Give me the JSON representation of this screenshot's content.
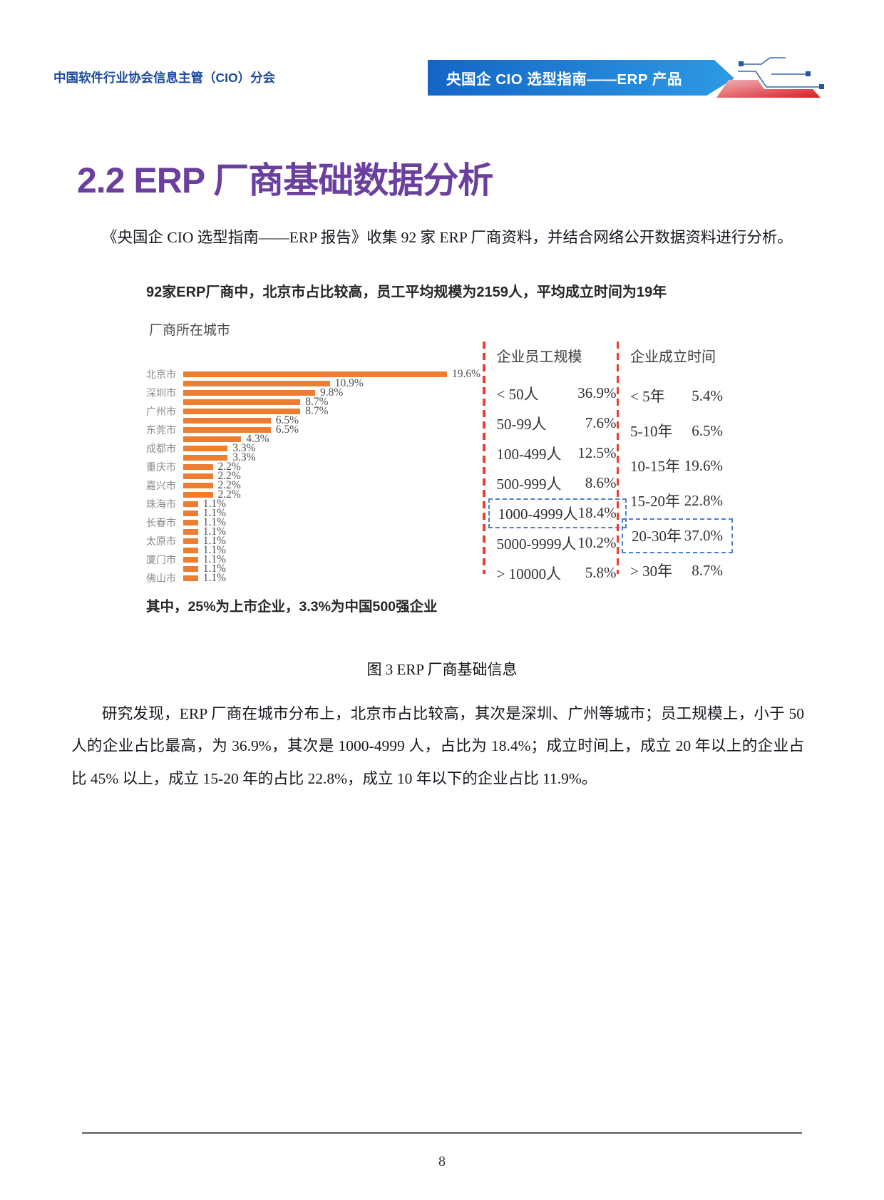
{
  "header": {
    "left_title": "中国软件行业协会信息主管（CIO）分会",
    "banner_title": "央国企 CIO 选型指南——ERP 产品"
  },
  "section": {
    "heading": "2.2 ERP 厂商基础数据分析",
    "intro_paragraph": "《央国企 CIO 选型指南——ERP 报告》收集 92 家 ERP 厂商资料，并结合网络公开数据资料进行分析。",
    "analysis_paragraph": "研究发现，ERP 厂商在城市分布上，北京市占比较高，其次是深圳、广州等城市；员工规模上，小于 50 人的企业占比最高，为 36.9%，其次是 1000-4999 人，占比为 18.4%；成立时间上，成立 20 年以上的企业占比 45% 以上，成立 15-20 年的占比 22.8%，成立 10 年以下的企业占比 11.9%。"
  },
  "figure": {
    "note": "其中，25%为上市企业，3.3%为中国500强企业",
    "caption": "图 3 ERP 厂商基础信息"
  },
  "chart_data": {
    "type": "bar",
    "title": "92家ERP厂商中，北京市占比较高，员工平均规模为2159人，平均成立时间为19年",
    "city": {
      "title": "厂商所在城市",
      "unit": "%",
      "xmax": 19.6,
      "bars": [
        {
          "label": "北京市",
          "value": 19.6
        },
        {
          "label": "",
          "value": 10.9
        },
        {
          "label": "深圳市",
          "value": 9.8
        },
        {
          "label": "",
          "value": 8.7
        },
        {
          "label": "广州市",
          "value": 8.7
        },
        {
          "label": "",
          "value": 6.5
        },
        {
          "label": "东莞市",
          "value": 6.5
        },
        {
          "label": "",
          "value": 4.3
        },
        {
          "label": "成都市",
          "value": 3.3
        },
        {
          "label": "",
          "value": 3.3
        },
        {
          "label": "重庆市",
          "value": 2.2
        },
        {
          "label": "",
          "value": 2.2
        },
        {
          "label": "嘉兴市",
          "value": 2.2
        },
        {
          "label": "",
          "value": 2.2
        },
        {
          "label": "珠海市",
          "value": 1.1
        },
        {
          "label": "",
          "value": 1.1
        },
        {
          "label": "长春市",
          "value": 1.1
        },
        {
          "label": "",
          "value": 1.1
        },
        {
          "label": "太原市",
          "value": 1.1
        },
        {
          "label": "",
          "value": 1.1
        },
        {
          "label": "厦门市",
          "value": 1.1
        },
        {
          "label": "",
          "value": 1.1
        },
        {
          "label": "佛山市",
          "value": 1.1
        }
      ]
    },
    "employee_scale": {
      "title": "企业员工规模",
      "rows": [
        {
          "label": "< 50人",
          "value": "36.9%",
          "highlight": false
        },
        {
          "label": "50-99人",
          "value": "7.6%",
          "highlight": false
        },
        {
          "label": "100-499人",
          "value": "12.5%",
          "highlight": false
        },
        {
          "label": "500-999人",
          "value": "8.6%",
          "highlight": false
        },
        {
          "label": "1000-4999人",
          "value": "18.4%",
          "highlight": true
        },
        {
          "label": "5000-9999人",
          "value": "10.2%",
          "highlight": false
        },
        {
          "label": "> 10000人",
          "value": "5.8%",
          "highlight": false
        }
      ]
    },
    "founding_time": {
      "title": "企业成立时间",
      "rows": [
        {
          "label": "< 5年",
          "value": "5.4%",
          "highlight": false
        },
        {
          "label": "5-10年",
          "value": "6.5%",
          "highlight": false
        },
        {
          "label": "10-15年",
          "value": "19.6%",
          "highlight": false
        },
        {
          "label": "15-20年",
          "value": "22.8%",
          "highlight": false
        },
        {
          "label": "20-30年",
          "value": "37.0%",
          "highlight": true
        },
        {
          "label": "> 30年",
          "value": "8.7%",
          "highlight": false
        }
      ]
    },
    "colors": {
      "bar": "#ED7D31",
      "divider_dash": "#F23B2F",
      "highlight_dash": "#4A7DD6",
      "heading_purple": "#6B3F9D",
      "header_blue": "#1B4A9E"
    }
  },
  "footer": {
    "page_number": "8"
  }
}
